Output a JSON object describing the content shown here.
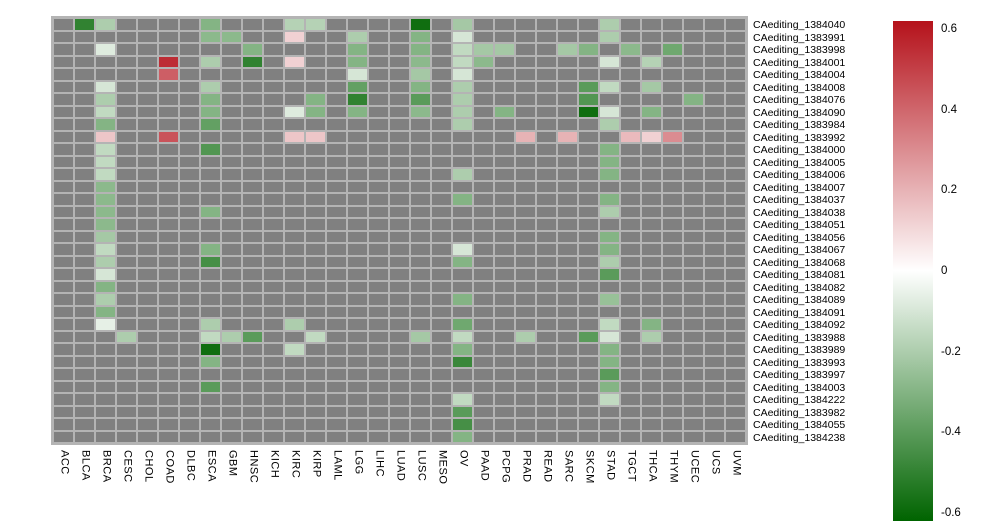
{
  "figure": {
    "background": "#ffffff",
    "na_color": "#808080",
    "grid_background": "#b4b4b4",
    "label_color": "#000000"
  },
  "chart_data": {
    "type": "heatmap",
    "title": "",
    "xlabel": "",
    "ylabel": "",
    "legend_position": "right",
    "columns": [
      "ACC",
      "BLCA",
      "BRCA",
      "CESC",
      "CHOL",
      "COAD",
      "DLBC",
      "ESCA",
      "GBM",
      "HNSC",
      "KICH",
      "KIRC",
      "KIRP",
      "LAML",
      "LGG",
      "LIHC",
      "LUAD",
      "LUSC",
      "MESO",
      "OV",
      "PAAD",
      "PCPG",
      "PRAD",
      "READ",
      "SARC",
      "SKCM",
      "STAD",
      "TGCT",
      "THCA",
      "THYM",
      "UCEC",
      "UCS",
      "UVM"
    ],
    "rows": [
      "CAediting_1384040",
      "CAediting_1383991",
      "CAediting_1383998",
      "CAediting_1384001",
      "CAediting_1384004",
      "CAediting_1384008",
      "CAediting_1384076",
      "CAediting_1384090",
      "CAediting_1383984",
      "CAediting_1383992",
      "CAediting_1384000",
      "CAediting_1384005",
      "CAediting_1384006",
      "CAediting_1384007",
      "CAediting_1384037",
      "CAediting_1384038",
      "CAediting_1384051",
      "CAediting_1384056",
      "CAediting_1384067",
      "CAediting_1384068",
      "CAediting_1384081",
      "CAediting_1384082",
      "CAediting_1384089",
      "CAediting_1384091",
      "CAediting_1384092",
      "CAediting_1383988",
      "CAediting_1383989",
      "CAediting_1383993",
      "CAediting_1383997",
      "CAediting_1384003",
      "CAediting_1384222",
      "CAediting_1383982",
      "CAediting_1384055",
      "CAediting_1384238"
    ],
    "cells": {
      "CAediting_1384040": {
        "BLCA": -0.5,
        "BRCA": -0.2,
        "ESCA": -0.3,
        "KIRC": -0.18,
        "KIRP": -0.18,
        "LUSC": -0.58,
        "OV": -0.22,
        "STAD": -0.2
      },
      "CAediting_1383991": {
        "ESCA": -0.28,
        "GBM": -0.28,
        "KIRC": 0.12,
        "LGG": -0.2,
        "LUSC": -0.3,
        "OV": -0.1,
        "STAD": -0.2
      },
      "CAediting_1383998": {
        "BRCA": -0.08,
        "HNSC": -0.3,
        "LGG": -0.3,
        "LUSC": -0.3,
        "OV": -0.15,
        "PAAD": -0.22,
        "PCPG": -0.22,
        "SARC": -0.22,
        "SKCM": -0.3,
        "TGCT": -0.28,
        "THYM": -0.35
      },
      "CAediting_1384001": {
        "COAD": 0.55,
        "ESCA": -0.2,
        "HNSC": -0.5,
        "KIRC": 0.12,
        "LGG": -0.3,
        "LUSC": -0.28,
        "OV": -0.15,
        "PAAD": -0.28,
        "STAD": -0.1,
        "THCA": -0.18
      },
      "CAediting_1384004": {
        "COAD": 0.42,
        "LGG": -0.1,
        "LUSC": -0.22,
        "OV": -0.1
      },
      "CAediting_1384008": {
        "BRCA": -0.1,
        "ESCA": -0.2,
        "LGG": -0.38,
        "LUSC": -0.3,
        "OV": -0.2,
        "SKCM": -0.4,
        "STAD": -0.15,
        "THCA": -0.22
      },
      "CAediting_1384076": {
        "BRCA": -0.2,
        "ESCA": -0.3,
        "KIRP": -0.3,
        "LGG": -0.5,
        "LUSC": -0.4,
        "OV": -0.2,
        "SKCM": -0.42,
        "UCEC": -0.3
      },
      "CAediting_1384090": {
        "BRCA": -0.15,
        "ESCA": -0.3,
        "KIRC": -0.08,
        "KIRP": -0.3,
        "LGG": -0.3,
        "LUSC": -0.28,
        "OV": -0.2,
        "PCPG": -0.3,
        "SKCM": -0.58,
        "STAD": -0.1,
        "THCA": -0.3
      },
      "CAediting_1383984": {
        "BRCA": -0.3,
        "ESCA": -0.38,
        "OV": -0.2,
        "STAD": -0.2
      },
      "CAediting_1383992": {
        "BRCA": 0.15,
        "COAD": 0.45,
        "KIRC": 0.15,
        "KIRP": 0.15,
        "PRAD": 0.2,
        "SARC": 0.2,
        "TGCT": 0.18,
        "THCA": 0.12,
        "THYM": 0.3
      },
      "CAediting_1384000": {
        "BRCA": -0.15,
        "ESCA": -0.42,
        "STAD": -0.3
      },
      "CAediting_1384005": {
        "BRCA": -0.15,
        "STAD": -0.3
      },
      "CAediting_1384006": {
        "BRCA": -0.15,
        "OV": -0.2,
        "STAD": -0.3
      },
      "CAediting_1384007": {
        "BRCA": -0.28
      },
      "CAediting_1384037": {
        "BRCA": -0.28,
        "OV": -0.3,
        "STAD": -0.3
      },
      "CAediting_1384038": {
        "BRCA": -0.28,
        "ESCA": -0.3,
        "STAD": -0.2
      },
      "CAediting_1384051": {
        "BRCA": -0.28
      },
      "CAediting_1384056": {
        "BRCA": -0.22,
        "STAD": -0.3
      },
      "CAediting_1384067": {
        "BRCA": -0.15,
        "ESCA": -0.3,
        "OV": -0.1,
        "STAD": -0.3
      },
      "CAediting_1384068": {
        "BRCA": -0.2,
        "ESCA": -0.45,
        "OV": -0.3,
        "STAD": -0.2
      },
      "CAediting_1384081": {
        "BRCA": -0.1,
        "STAD": -0.4
      },
      "CAediting_1384082": {
        "BRCA": -0.3
      },
      "CAediting_1384089": {
        "BRCA": -0.2,
        "OV": -0.3,
        "STAD": -0.25
      },
      "CAediting_1384091": {
        "BRCA": -0.3
      },
      "CAediting_1384092": {
        "BRCA": -0.06,
        "ESCA": -0.2,
        "KIRC": -0.2,
        "OV": -0.35,
        "STAD": -0.15,
        "THCA": -0.3
      },
      "CAediting_1383988": {
        "CESC": -0.2,
        "ESCA": -0.15,
        "GBM": -0.2,
        "HNSC": -0.4,
        "KIRP": -0.15,
        "LUSC": -0.22,
        "OV": -0.15,
        "PRAD": -0.2,
        "SKCM": -0.4,
        "STAD": -0.1,
        "THCA": -0.2
      },
      "CAediting_1383989": {
        "ESCA": -0.58,
        "KIRC": -0.15,
        "OV": -0.3,
        "STAD": -0.3
      },
      "CAediting_1383993": {
        "ESCA": -0.3,
        "OV": -0.48,
        "STAD": -0.3
      },
      "CAediting_1383997": {
        "STAD": -0.4
      },
      "CAediting_1384003": {
        "ESCA": -0.4,
        "STAD": -0.3
      },
      "CAediting_1384222": {
        "OV": -0.15,
        "STAD": -0.15
      },
      "CAediting_1383982": {
        "OV": -0.4
      },
      "CAediting_1384055": {
        "OV": -0.45
      },
      "CAediting_1384238": {
        "OV": -0.3
      }
    },
    "colorbar": {
      "tick_labels": [
        "0.6",
        "0.4",
        "0.2",
        "0",
        "-0.2",
        "-0.4",
        "-0.6"
      ],
      "tick_values": [
        0.6,
        0.4,
        0.2,
        0,
        -0.2,
        -0.4,
        -0.6
      ],
      "vmax": 0.62,
      "vmin": -0.62,
      "positive_color": "#b5121b",
      "zero_color": "#ffffff",
      "negative_color": "#006400"
    }
  }
}
